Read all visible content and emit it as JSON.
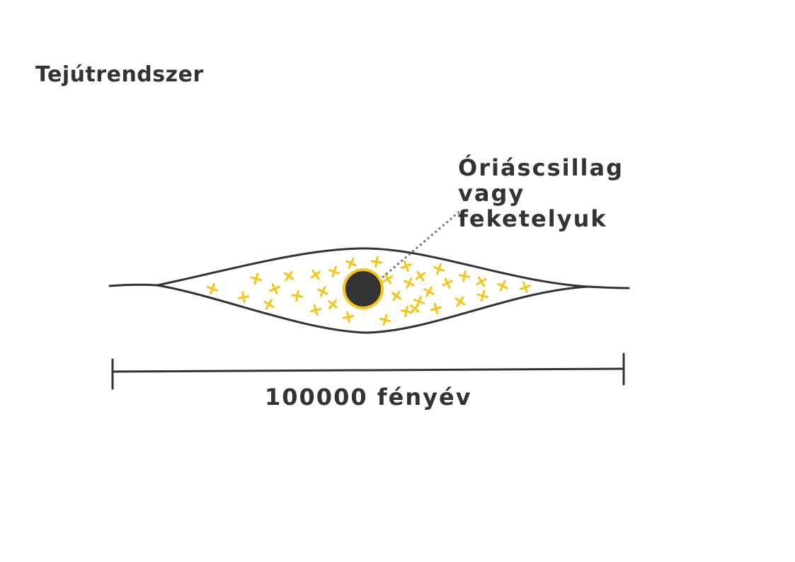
{
  "title": "Tejútrendszer",
  "callout": {
    "lines": [
      "Óriáscsillag",
      "vagy",
      "feketelyuk"
    ]
  },
  "scale": {
    "label": "100000 fényév"
  },
  "colors": {
    "ink": "#333333",
    "star": "#f5c518",
    "core": "#333333",
    "core_ring": "#f5c518",
    "leader": "#777777"
  },
  "icons": {
    "star": "star-cross-icon",
    "core": "black-hole-icon"
  }
}
